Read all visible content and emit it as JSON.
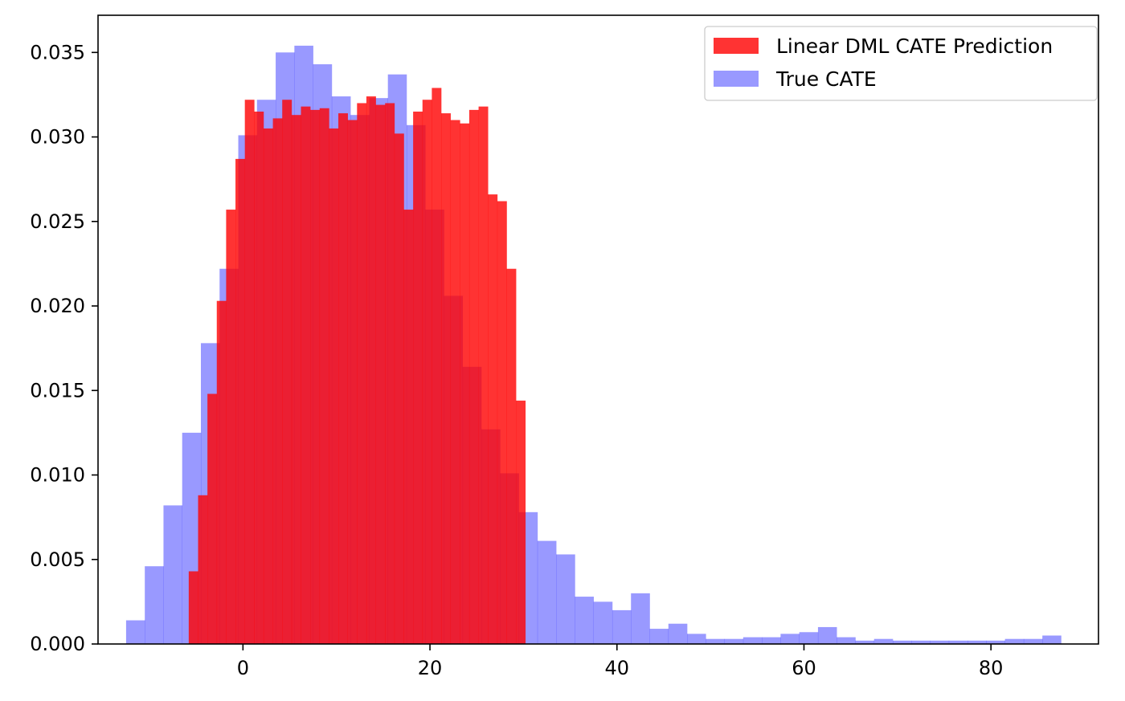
{
  "chart_data": {
    "type": "bar",
    "title": "",
    "xlabel": "",
    "ylabel": "",
    "xlim": [
      -15.5,
      91.5
    ],
    "ylim": [
      0,
      0.0372
    ],
    "x_ticks": [
      0,
      20,
      40,
      60,
      80
    ],
    "x_tick_labels": [
      "0",
      "20",
      "40",
      "60",
      "80"
    ],
    "y_ticks": [
      0.0,
      0.005,
      0.01,
      0.015,
      0.02,
      0.025,
      0.03,
      0.035
    ],
    "y_tick_labels": [
      "0.000",
      "0.005",
      "0.010",
      "0.015",
      "0.020",
      "0.025",
      "0.030",
      "0.035"
    ],
    "grid": false,
    "legend_position": "top-right",
    "series": [
      {
        "name": "True CATE",
        "color": "#0000ff",
        "alpha": 0.4,
        "bin_edges": [
          -12.5,
          -10.5,
          -8.5,
          -6.5,
          -4.5,
          -2.5,
          -0.5,
          1.5,
          3.5,
          5.5,
          7.5,
          9.5,
          11.5,
          13.5,
          15.5,
          17.5,
          19.5,
          21.5,
          23.5,
          25.5,
          27.5,
          29.5,
          31.5,
          33.5,
          35.5,
          37.5,
          39.5,
          41.5,
          43.5,
          45.5,
          47.5,
          49.5,
          51.5,
          53.5,
          55.5,
          57.5,
          59.5,
          61.5,
          63.5,
          65.5,
          67.5,
          69.5,
          71.5,
          73.5,
          75.5,
          77.5,
          79.5,
          81.5,
          83.5,
          85.5,
          87.5
        ],
        "densities": [
          0.0014,
          0.0046,
          0.0082,
          0.0125,
          0.0178,
          0.0222,
          0.0301,
          0.0322,
          0.035,
          0.0354,
          0.0343,
          0.0324,
          0.0313,
          0.0323,
          0.0337,
          0.0307,
          0.0257,
          0.0206,
          0.0164,
          0.0127,
          0.0101,
          0.0078,
          0.0061,
          0.0053,
          0.0028,
          0.0025,
          0.002,
          0.003,
          0.0009,
          0.0012,
          0.0006,
          0.0003,
          0.0003,
          0.0004,
          0.0004,
          0.0006,
          0.0007,
          0.001,
          0.0004,
          0.0002,
          0.0003,
          0.0002,
          0.0002,
          0.0002,
          0.0002,
          0.0002,
          0.0002,
          0.0003,
          0.0003,
          0.0005
        ]
      },
      {
        "name": "Linear DML CATE Prediction",
        "color": "#ff0000",
        "alpha": 0.8,
        "bin_edges": [
          -5.8,
          -4.8,
          -3.8,
          -2.8,
          -1.8,
          -0.8,
          0.2,
          1.2,
          2.2,
          3.2,
          4.2,
          5.2,
          6.2,
          7.2,
          8.2,
          9.2,
          10.2,
          11.2,
          12.2,
          13.2,
          14.2,
          15.2,
          16.2,
          17.2,
          18.2,
          19.2,
          20.2,
          21.2,
          22.2,
          23.2,
          24.2,
          25.2,
          26.2,
          27.2,
          28.2,
          29.2,
          30.2
        ],
        "densities": [
          0.0043,
          0.0088,
          0.0148,
          0.0203,
          0.0257,
          0.0287,
          0.0322,
          0.0315,
          0.0305,
          0.0311,
          0.0322,
          0.0313,
          0.0318,
          0.0316,
          0.0317,
          0.0305,
          0.0314,
          0.031,
          0.032,
          0.0324,
          0.0319,
          0.032,
          0.0302,
          0.0257,
          0.0315,
          0.0322,
          0.0329,
          0.0314,
          0.031,
          0.0308,
          0.0316,
          0.0318,
          0.0266,
          0.0262,
          0.0222,
          0.0144,
          0.0093
        ]
      }
    ]
  }
}
